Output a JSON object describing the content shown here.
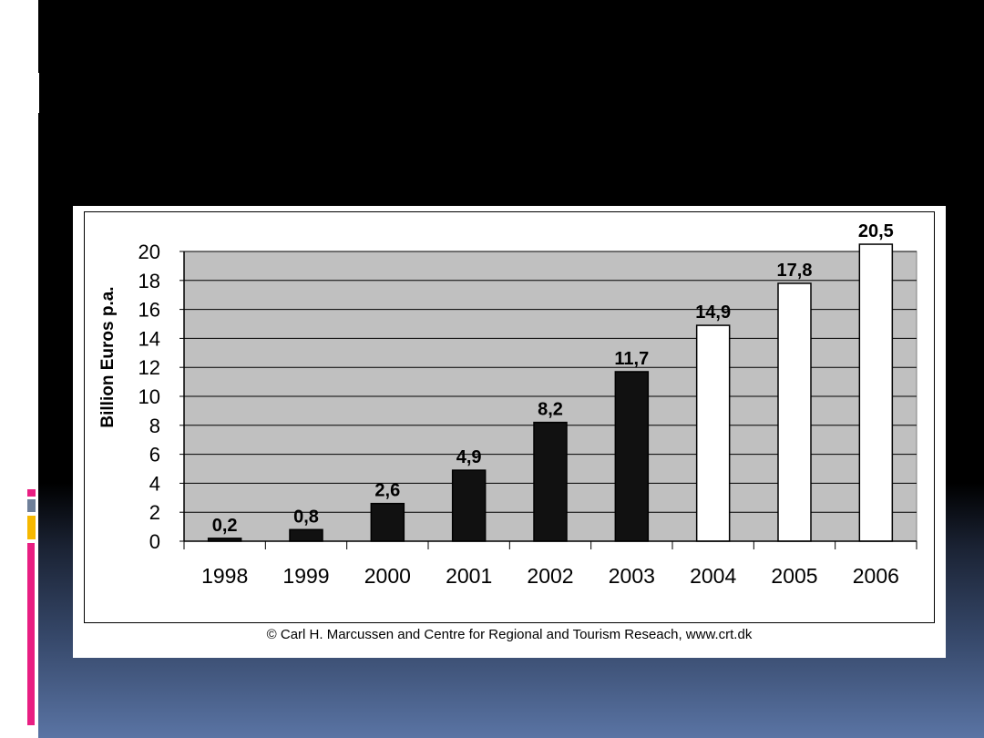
{
  "chart_data": {
    "type": "bar",
    "categories": [
      "1998",
      "1999",
      "2000",
      "2001",
      "2002",
      "2003",
      "2004",
      "2005",
      "2006"
    ],
    "values": [
      0.2,
      0.8,
      2.6,
      4.9,
      8.2,
      11.7,
      14.9,
      17.8,
      20.5
    ],
    "value_labels": [
      "0,2",
      "0,8",
      "2,6",
      "4,9",
      "8,2",
      "11,7",
      "14,9",
      "17,8",
      "20,5"
    ],
    "bar_fill": [
      "black",
      "black",
      "black",
      "black",
      "black",
      "black",
      "white",
      "white",
      "white"
    ],
    "ylabel": "Billion Euros p.a.",
    "xlabel": "",
    "ylim": [
      0,
      20
    ],
    "yticks": [
      "0",
      "2",
      "4",
      "6",
      "8",
      "10",
      "12",
      "14",
      "16",
      "18",
      "20"
    ],
    "grid": true,
    "plot_background": "#c0c0c0"
  },
  "credit": "© Carl H. Marcussen and Centre for Regional and Tourism Reseach, www.crt.dk",
  "colors": {
    "accent_pink": "#e91e82",
    "accent_yellow": "#f6b800",
    "accent_gray": "#6e7f99",
    "background_blue": "#5a74a4"
  }
}
